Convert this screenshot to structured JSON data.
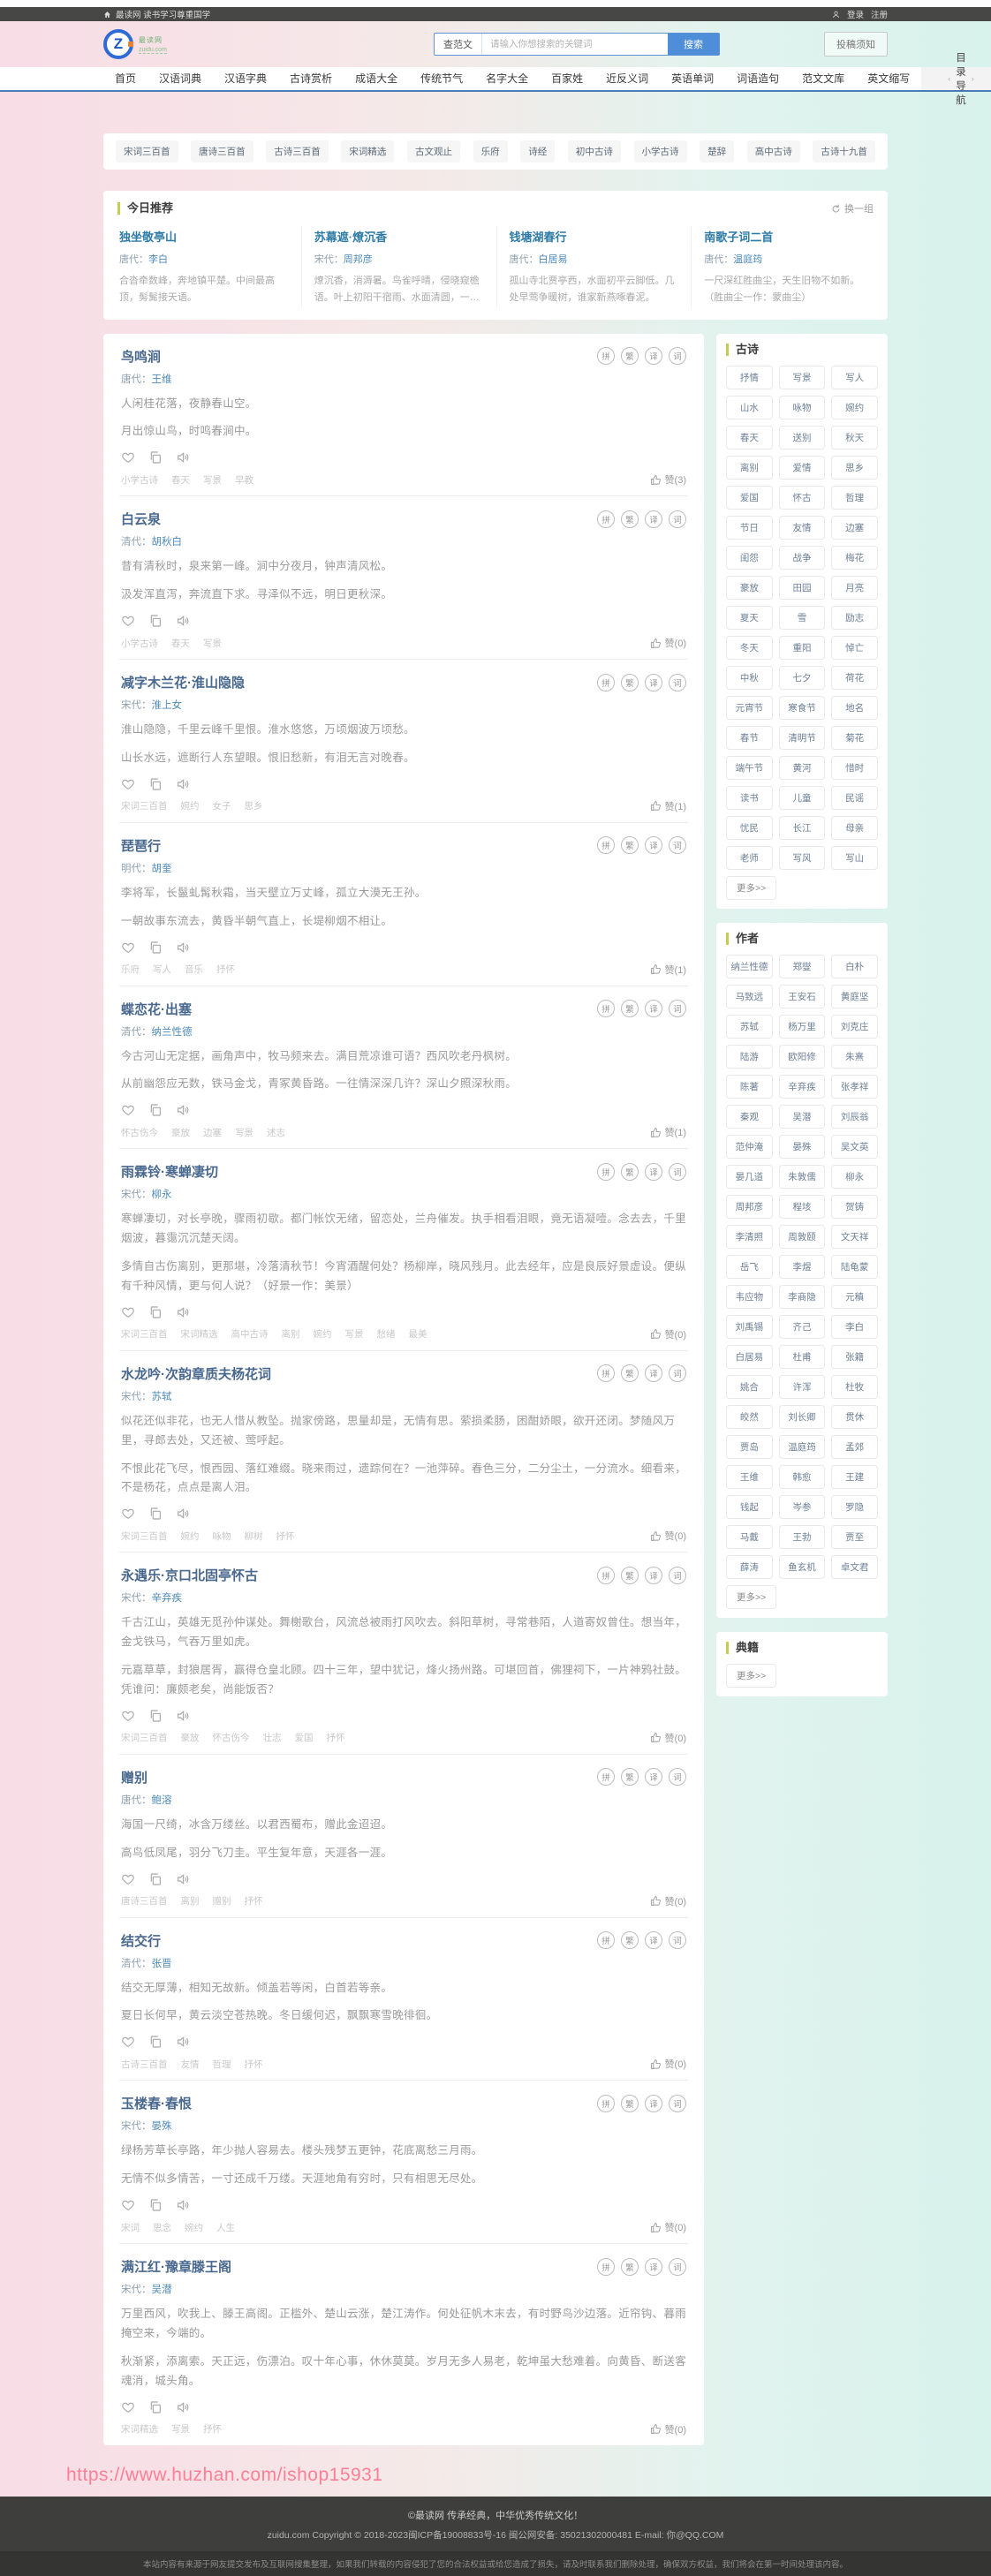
{
  "topbar": {
    "site_note": "最读网 读书学习尊重国学",
    "login": "登录",
    "register": "注册"
  },
  "header": {
    "logo_letter": "Z",
    "logo_name": "最读网",
    "logo_sub": "zuidu.com",
    "search": {
      "category": "查范文",
      "placeholder": "请输入你想搜索的关键词",
      "button": "搜索"
    },
    "submit_label": "投稿须知"
  },
  "nav": {
    "items": [
      "首页",
      "汉语词典",
      "汉语字典",
      "古诗赏析",
      "成语大全",
      "传统节气",
      "名字大全",
      "百家姓",
      "近反义词",
      "英语单词",
      "词语造句",
      "范文文库",
      "英文缩写"
    ],
    "more": "目录导航"
  },
  "quick_tags": [
    "宋词三百首",
    "唐诗三百首",
    "古诗三百首",
    "宋词精选",
    "古文观止",
    "乐府",
    "诗经",
    "初中古诗",
    "小学古诗",
    "楚辞",
    "高中古诗",
    "古诗十九首"
  ],
  "today": {
    "title": "今日推荐",
    "refresh": "换一组",
    "cards": [
      {
        "title": "独坐敬亭山",
        "dynasty": "唐代：",
        "author": "李白",
        "preview": "合沓牵数峰，奔地镇平楚。中间最高顶，髣髴接天语。"
      },
      {
        "title": "苏幕遮·燎沉香",
        "dynasty": "宋代：",
        "author": "周邦彦",
        "preview": "燎沉香，消溽暑。鸟雀呼晴，侵晓窥檐语。叶上初阳干宿雨、水面清圆，一一风荷举。"
      },
      {
        "title": "钱塘湖春行",
        "dynasty": "唐代：",
        "author": "白居易",
        "preview": "孤山寺北贾亭西，水面初平云脚低。几处早莺争暖树，谁家新燕啄春泥。"
      },
      {
        "title": "南歌子词二首",
        "dynasty": "唐代：",
        "author": "温庭筠",
        "preview": "一尺深红胜曲尘，天生旧物不如新。（胜曲尘一作：蒙曲尘）"
      }
    ]
  },
  "circle_icons": [
    "拼",
    "繁",
    "译",
    "词"
  ],
  "poems": [
    {
      "title": "鸟鸣涧",
      "dynasty": "唐代：",
      "author": "王维",
      "paras": [
        "人闲桂花落，夜静春山空。",
        "月出惊山鸟，时鸣春涧中。"
      ],
      "tags": [
        "小学古诗",
        "春天",
        "写景",
        "早教"
      ],
      "likes": "赞(3)"
    },
    {
      "title": "白云泉",
      "dynasty": "清代：",
      "author": "胡秋白",
      "paras": [
        "昔有清秋时，泉来第一峰。涧中分夜月，钟声清风松。",
        "汲发浑直泻，奔流直下求。寻泽似不远，明日更秋深。"
      ],
      "tags": [
        "小学古诗",
        "春天",
        "写景"
      ],
      "likes": "赞(0)"
    },
    {
      "title": "减字木兰花·淮山隐隐",
      "dynasty": "宋代：",
      "author": "淮上女",
      "paras": [
        "淮山隐隐，千里云峰千里恨。淮水悠悠，万顷烟波万顷愁。",
        "山长水远，遮断行人东望眼。恨旧愁新，有泪无言对晚春。"
      ],
      "tags": [
        "宋词三百首",
        "婉约",
        "女子",
        "思乡"
      ],
      "likes": "赞(1)"
    },
    {
      "title": "琵琶行",
      "dynasty": "明代：",
      "author": "胡奎",
      "paras": [
        "李将军，长鬣虬髯秋霜，当天壁立万丈峰，孤立大漠无王孙。",
        "一朝故事东流去，黄昏半朝气直上，长堤柳烟不相让。"
      ],
      "tags": [
        "乐府",
        "写人",
        "音乐",
        "抒怀"
      ],
      "likes": "赞(1)"
    },
    {
      "title": "蝶恋花·出塞",
      "dynasty": "清代：",
      "author": "纳兰性德",
      "paras": [
        "今古河山无定据，画角声中，牧马频来去。满目荒凉谁可语？西风吹老丹枫树。",
        "从前幽怨应无数，铁马金戈，青冢黄昏路。一往情深深几许？深山夕照深秋雨。"
      ],
      "tags": [
        "怀古伤今",
        "豪放",
        "边塞",
        "写景",
        "述志"
      ],
      "likes": "赞(1)"
    },
    {
      "title": "雨霖铃·寒蝉凄切",
      "dynasty": "宋代：",
      "author": "柳永",
      "paras": [
        "寒蝉凄切，对长亭晚，骤雨初歇。都门帐饮无绪，留恋处，兰舟催发。执手相看泪眼，竟无语凝噎。念去去，千里烟波，暮霭沉沉楚天阔。",
        "多情自古伤离别，更那堪，冷落清秋节！今宵酒醒何处？杨柳岸，晓风残月。此去经年，应是良辰好景虚设。便纵有千种风情，更与何人说？（好景一作：美景）"
      ],
      "tags": [
        "宋词三百首",
        "宋词精选",
        "高中古诗",
        "离别",
        "婉约",
        "写景",
        "愁绪",
        "最美"
      ],
      "likes": "赞(0)"
    },
    {
      "title": "水龙吟·次韵章质夫杨花词",
      "dynasty": "宋代：",
      "author": "苏轼",
      "paras": [
        "似花还似非花，也无人惜从教坠。抛家傍路，思量却是，无情有思。萦损柔肠，困酣娇眼，欲开还闭。梦随风万里，寻郎去处，又还被、莺呼起。",
        "不恨此花飞尽，恨西园、落红难缀。晓来雨过，遗踪何在？一池萍碎。春色三分，二分尘土，一分流水。细看来，不是杨花，点点是离人泪。"
      ],
      "tags": [
        "宋词三百首",
        "婉约",
        "咏物",
        "柳树",
        "抒怀"
      ],
      "likes": "赞(0)"
    },
    {
      "title": "永遇乐·京口北固亭怀古",
      "dynasty": "宋代：",
      "author": "辛弃疾",
      "paras": [
        "千古江山，英雄无觅孙仲谋处。舞榭歌台，风流总被雨打风吹去。斜阳草树，寻常巷陌，人道寄奴曾住。想当年，金戈铁马，气吞万里如虎。",
        "元嘉草草，封狼居胥，赢得仓皇北顾。四十三年，望中犹记，烽火扬州路。可堪回首，佛狸祠下，一片神鸦社鼓。凭谁问：廉颇老矣，尚能饭否？"
      ],
      "tags": [
        "宋词三百首",
        "豪放",
        "怀古伤今",
        "壮志",
        "爱国",
        "抒怀"
      ],
      "likes": "赞(0)"
    },
    {
      "title": "赠别",
      "dynasty": "唐代：",
      "author": "鲍溶",
      "paras": [
        "海国一尺绮，冰含万缕丝。以君西蜀布，赠此金迢迢。",
        "高鸟低凤尾，羽分飞刀圭。平生复年意，天涯各一涯。"
      ],
      "tags": [
        "唐诗三百首",
        "离别",
        "赠别",
        "抒怀"
      ],
      "likes": "赞(0)"
    },
    {
      "title": "结交行",
      "dynasty": "清代：",
      "author": "张晋",
      "paras": [
        "结交无厚薄，相知无故新。倾盖若等闲，白首若等亲。",
        "夏日长何早，黄云淡空苍热晚。冬日缓何迟，飘飘寒雪晚徘徊。"
      ],
      "tags": [
        "古诗三百首",
        "友情",
        "哲理",
        "抒怀"
      ],
      "likes": "赞(0)"
    },
    {
      "title": "玉楼春·春恨",
      "dynasty": "宋代：",
      "author": "晏殊",
      "paras": [
        "绿杨芳草长亭路，年少抛人容易去。楼头残梦五更钟，花底离愁三月雨。",
        "无情不似多情苦，一寸还成千万缕。天涯地角有穷时，只有相思无尽处。"
      ],
      "tags": [
        "宋词",
        "思念",
        "婉约",
        "人生"
      ],
      "likes": "赞(0)"
    },
    {
      "title": "满江红·豫章滕王阁",
      "dynasty": "宋代：",
      "author": "吴潜",
      "paras": [
        "万里西风，吹我上、滕王高阁。正槛外、楚山云涨，楚江涛作。何处征帆木末去，有时野鸟沙边落。近帘钩、暮雨掩空来，今端的。",
        "秋渐紧，添离索。天正远，伤漂泊。叹十年心事，休休莫莫。岁月无多人易老，乾坤虽大愁难着。向黄昏、断送客魂消，城头角。"
      ],
      "tags": [
        "宋词精选",
        "写景",
        "抒怀"
      ],
      "likes": "赞(0)"
    }
  ],
  "sidebar": {
    "gushi": {
      "title": "古诗",
      "tags": [
        "抒情",
        "写景",
        "写人",
        "山水",
        "咏物",
        "婉约",
        "春天",
        "送别",
        "秋天",
        "离别",
        "爱情",
        "思乡",
        "爱国",
        "怀古",
        "哲理",
        "节日",
        "友情",
        "边塞",
        "闺怨",
        "战争",
        "梅花",
        "豪放",
        "田园",
        "月亮",
        "夏天",
        "雪",
        "励志",
        "冬天",
        "重阳",
        "悼亡",
        "中秋",
        "七夕",
        "荷花",
        "元宵节",
        "寒食节",
        "地名",
        "春节",
        "清明节",
        "菊花",
        "端午节",
        "黄河",
        "惜时",
        "读书",
        "儿童",
        "民谣",
        "忧民",
        "长江",
        "母亲",
        "老师",
        "写风",
        "写山"
      ],
      "more": "更多>>"
    },
    "authors": {
      "title": "作者",
      "names": [
        "纳兰性德",
        "郑燮",
        "白朴",
        "马致远",
        "王安石",
        "黄庭坚",
        "苏轼",
        "杨万里",
        "刘克庄",
        "陆游",
        "欧阳修",
        "朱熹",
        "陈著",
        "辛弃疾",
        "张孝祥",
        "秦观",
        "吴潜",
        "刘辰翁",
        "范仲淹",
        "晏殊",
        "吴文英",
        "晏几道",
        "朱敦儒",
        "柳永",
        "周邦彦",
        "程垓",
        "贺铸",
        "李清照",
        "周敦颐",
        "文天祥",
        "岳飞",
        "李煜",
        "陆龟蒙",
        "韦应物",
        "李商隐",
        "元稹",
        "刘禹锡",
        "齐己",
        "李白",
        "白居易",
        "杜甫",
        "张籍",
        "姚合",
        "许浑",
        "杜牧",
        "皎然",
        "刘长卿",
        "贯休",
        "贾岛",
        "温庭筠",
        "孟郊",
        "王维",
        "韩愈",
        "王建",
        "钱起",
        "岑参",
        "罗隐",
        "马戴",
        "王勃",
        "贾至",
        "薛涛",
        "鱼玄机",
        "卓文君"
      ],
      "more": "更多>>"
    },
    "dianji": {
      "title": "典籍",
      "more": "更多>>"
    }
  },
  "watermark": "https://www.huzhan.com/ishop15931",
  "footer": {
    "line1": "©最读网 传承经典，中华优秀传统文化！",
    "line2": "zuidu.com Copyright © 2018-2023闽ICP备19008833号-16 闽公网安备: 35021302000481 E-mail: 你@QQ.COM",
    "disclaimer": "本站内容有来源于网友提交发布及互联网搜集整理，如果我们转载的内容侵犯了您的合法权益或给您造成了损失，请及时联系我们删除处理，确保双方权益，我们将会在第一时间处理该内容。"
  }
}
